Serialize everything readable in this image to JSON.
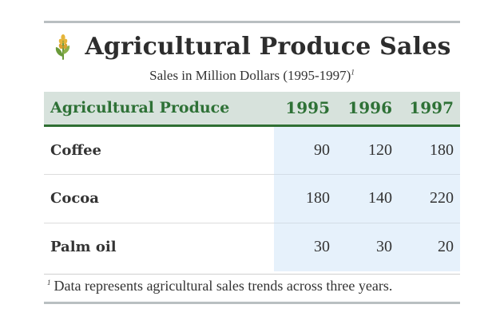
{
  "header": {
    "icon": "wheat-icon",
    "title": "Agricultural Produce Sales",
    "subtitle": "Sales in Million Dollars (1995-1997)",
    "subtitle_note_marker": "1"
  },
  "table": {
    "columns": [
      "Agricultural Produce",
      "1995",
      "1996",
      "1997"
    ],
    "rows": [
      {
        "label": "Coffee",
        "values": [
          "90",
          "120",
          "180"
        ]
      },
      {
        "label": "Cocoa",
        "values": [
          "180",
          "140",
          "220"
        ]
      },
      {
        "label": "Palm oil",
        "values": [
          "30",
          "30",
          "20"
        ]
      }
    ]
  },
  "footnote": {
    "marker": "1",
    "text": "Data represents agricultural sales trends across three years."
  },
  "colors": {
    "header_text": "#2e7136",
    "header_background": "#d7e2dc",
    "value_background": "#e6f1fb",
    "icon_green": "#6a9a3a",
    "icon_gold": "#e5b53a"
  },
  "chart_data": {
    "type": "table",
    "title": "Agricultural Produce Sales",
    "subtitle": "Sales in Million Dollars (1995-1997)",
    "columns": [
      "Agricultural Produce",
      "1995",
      "1996",
      "1997"
    ],
    "rows": [
      [
        "Coffee",
        90,
        120,
        180
      ],
      [
        "Cocoa",
        180,
        140,
        220
      ],
      [
        "Palm oil",
        30,
        30,
        20
      ]
    ]
  }
}
